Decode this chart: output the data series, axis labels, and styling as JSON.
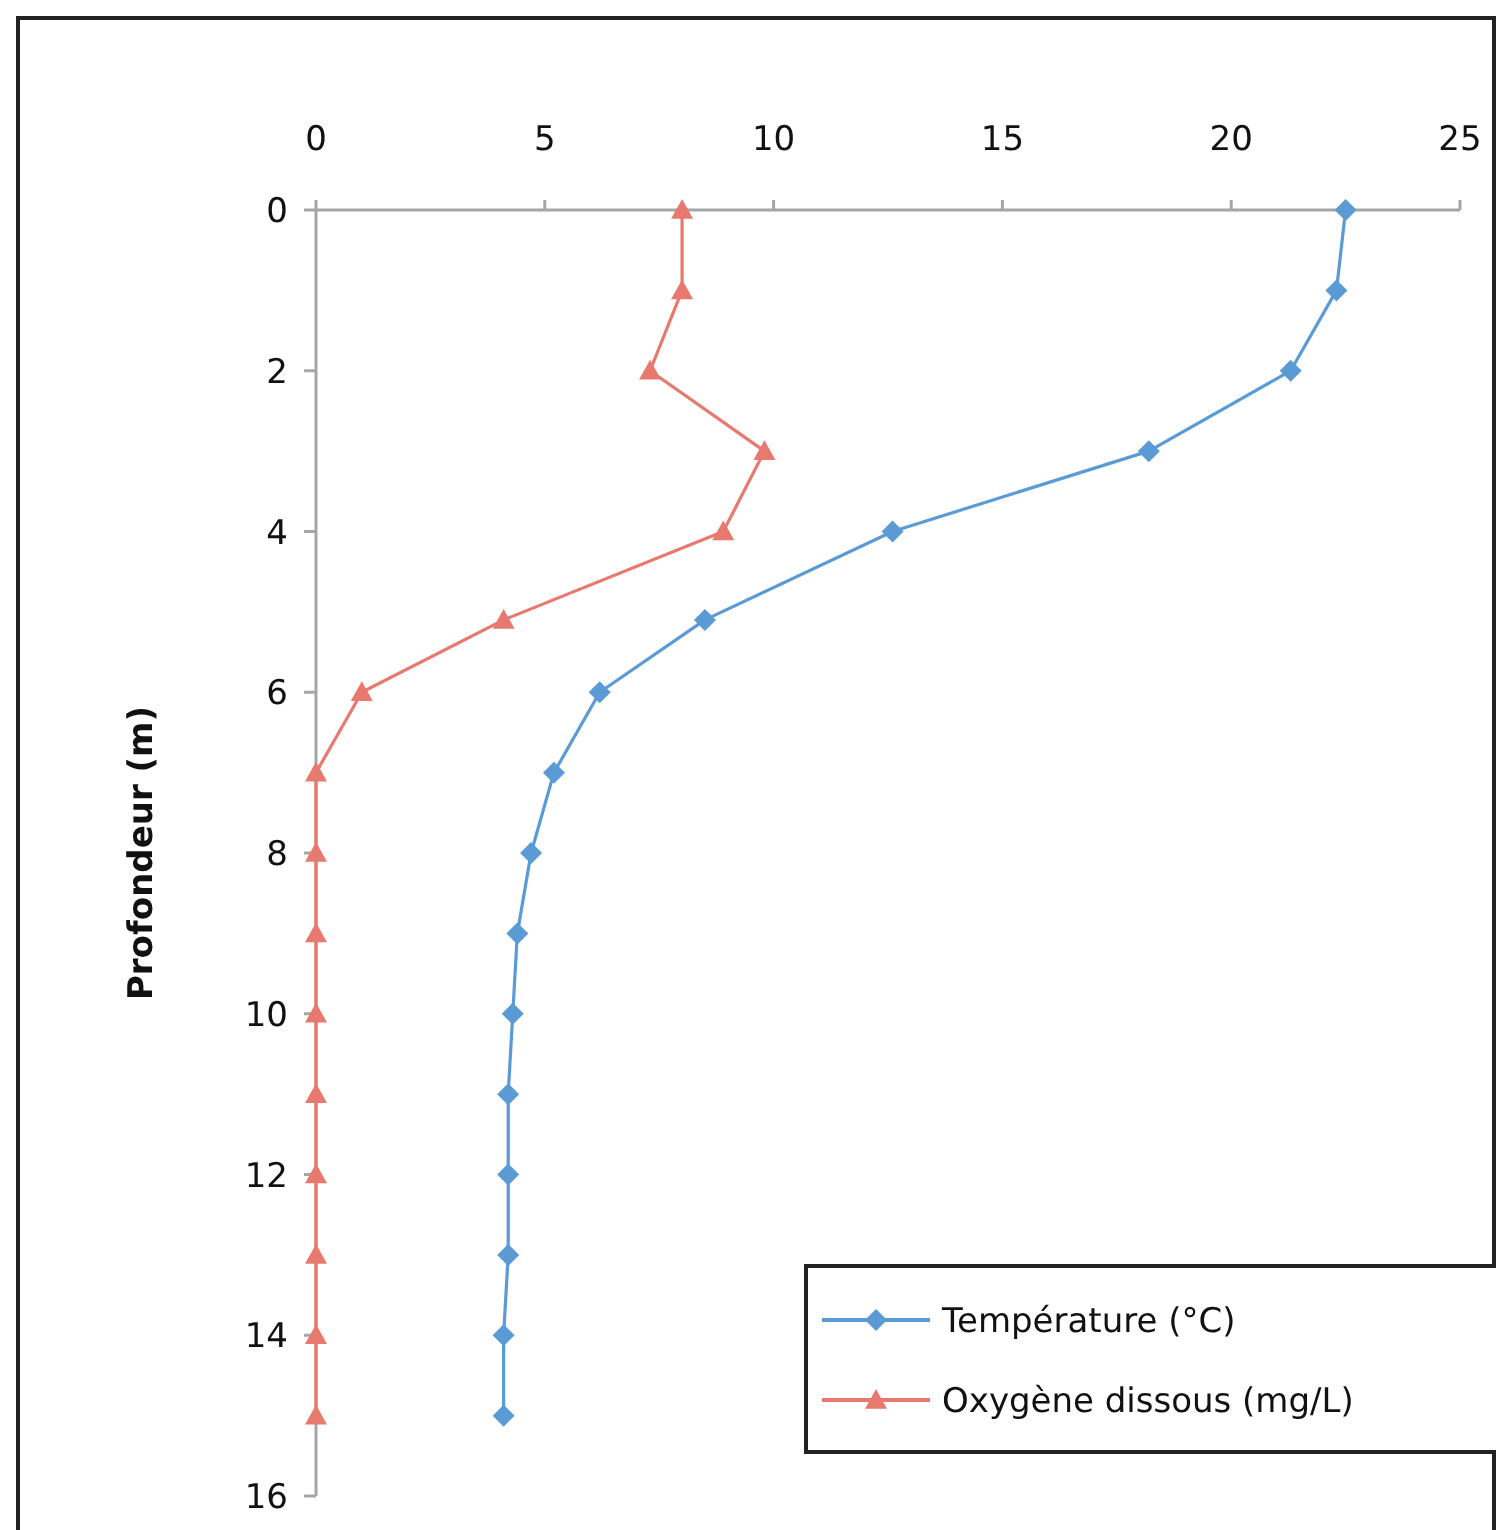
{
  "chart_data": {
    "type": "line",
    "ylabel": "Profondeur (m)",
    "xlim": [
      0,
      25
    ],
    "xticks": [
      0,
      5,
      10,
      15,
      20,
      25
    ],
    "ylim": [
      16,
      0
    ],
    "yticks": [
      0,
      2,
      4,
      6,
      8,
      10,
      12,
      14,
      16
    ],
    "grid": false,
    "legend": "bottom right",
    "series": [
      {
        "name": "Température (°C)",
        "color": "#5b9bd5",
        "marker": "diamond",
        "x": [
          22.5,
          22.3,
          21.3,
          18.2,
          12.6,
          8.5,
          6.2,
          5.2,
          4.7,
          4.4,
          4.3,
          4.2,
          4.2,
          4.2,
          4.1,
          4.1
        ],
        "values": [
          0,
          1,
          2,
          3,
          4,
          5.1,
          6,
          7,
          8,
          9,
          10,
          11,
          12,
          13,
          14,
          15
        ]
      },
      {
        "name": "Oxygène dissous (mg/L)",
        "color": "#e8796e",
        "marker": "triangle",
        "x": [
          8.0,
          8.0,
          7.3,
          9.8,
          8.9,
          4.1,
          1.0,
          0,
          0,
          0,
          0,
          0,
          0,
          0,
          0,
          0
        ],
        "values": [
          0,
          1,
          2,
          3,
          4,
          5.1,
          6,
          7,
          8,
          9,
          10,
          11,
          12,
          13,
          14,
          15
        ]
      }
    ]
  }
}
